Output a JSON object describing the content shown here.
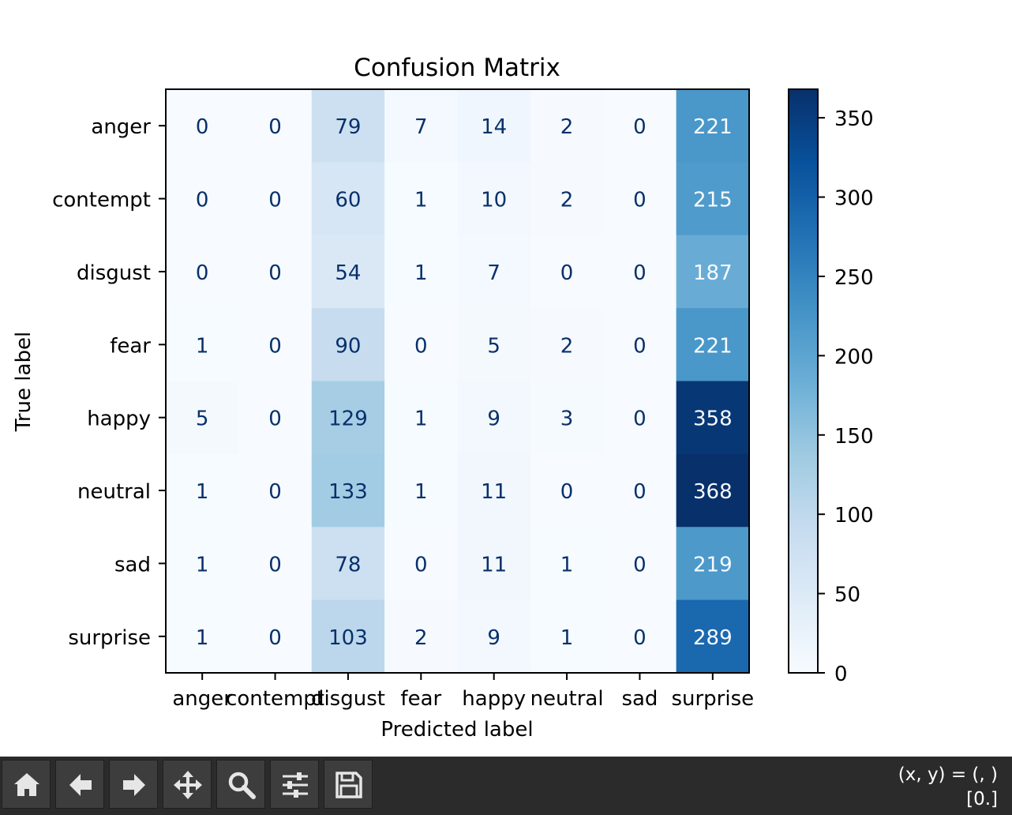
{
  "chart_data": {
    "type": "heatmap",
    "title": "Confusion Matrix",
    "xlabel": "Predicted label",
    "ylabel": "True label",
    "x_categories": [
      "anger",
      "contempt",
      "disgust",
      "fear",
      "happy",
      "neutral",
      "sad",
      "surprise"
    ],
    "y_categories": [
      "anger",
      "contempt",
      "disgust",
      "fear",
      "happy",
      "neutral",
      "sad",
      "surprise"
    ],
    "values": [
      [
        0,
        0,
        79,
        7,
        14,
        2,
        0,
        221
      ],
      [
        0,
        0,
        60,
        1,
        10,
        2,
        0,
        215
      ],
      [
        0,
        0,
        54,
        1,
        7,
        0,
        0,
        187
      ],
      [
        1,
        0,
        90,
        0,
        5,
        2,
        0,
        221
      ],
      [
        5,
        0,
        129,
        1,
        9,
        3,
        0,
        358
      ],
      [
        1,
        0,
        133,
        1,
        11,
        0,
        0,
        368
      ],
      [
        1,
        0,
        78,
        0,
        11,
        1,
        0,
        219
      ],
      [
        1,
        0,
        103,
        2,
        9,
        1,
        0,
        289
      ]
    ],
    "colormap": "Blues",
    "color_range": [
      0,
      368
    ],
    "colorbar_ticks": [
      0,
      50,
      100,
      150,
      200,
      250,
      300,
      350
    ]
  },
  "toolbar": {
    "buttons": [
      {
        "name": "home-button",
        "icon": "home-icon"
      },
      {
        "name": "back-button",
        "icon": "arrow-left-icon"
      },
      {
        "name": "forward-button",
        "icon": "arrow-right-icon"
      },
      {
        "name": "pan-button",
        "icon": "move-icon"
      },
      {
        "name": "zoom-button",
        "icon": "magnifier-icon"
      },
      {
        "name": "configure-subplots-button",
        "icon": "sliders-icon"
      },
      {
        "name": "save-button",
        "icon": "floppy-disk-icon"
      }
    ],
    "coord_line1": "(x, y) = (, )",
    "coord_line2": "[0.]"
  },
  "colors": {
    "toolbar_bg": "#2b2b2b",
    "button_bg": "#3d3d3d",
    "icon": "#e6e6e6"
  }
}
